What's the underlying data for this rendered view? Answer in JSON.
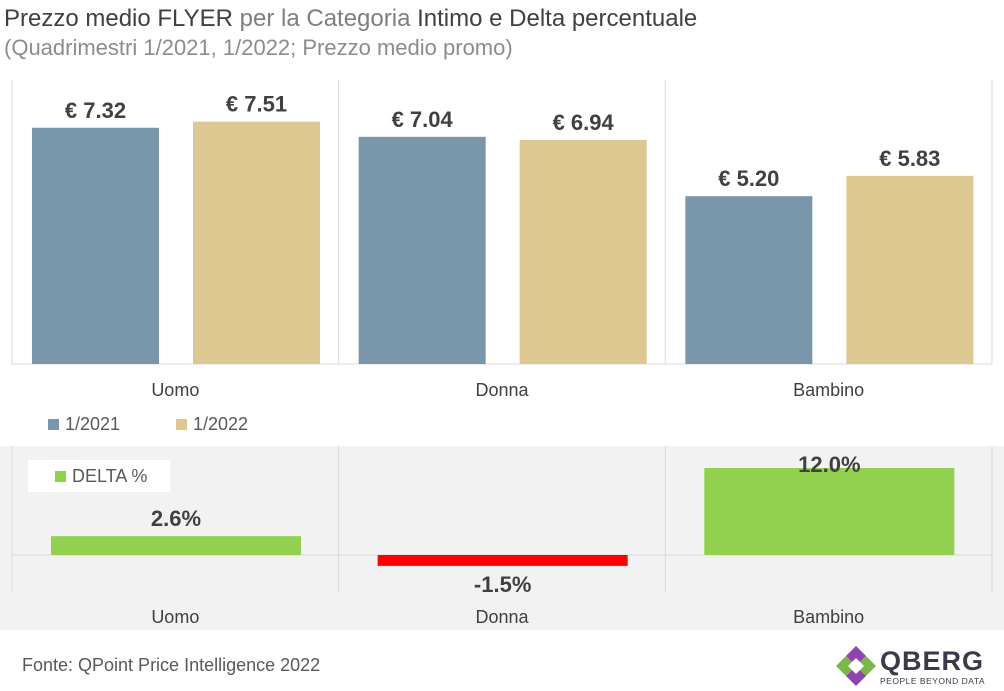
{
  "title": {
    "part1": "Prezzo medio FLYER",
    "part2": " per la Categoria ",
    "part3": "Intimo e Delta percentuale"
  },
  "subtitle": "(Quadrimestri 1/2021, 1/2022; Prezzo medio promo)",
  "source": "Fonte: QPoint Price Intelligence 2022",
  "logo": {
    "name": "QBERG",
    "tagline": "PEOPLE BEYOND DATA"
  },
  "colors": {
    "series_2021": "#7a96aa",
    "series_2022": "#dcc890",
    "delta_positive": "#92d050",
    "delta_negative": "#ff0000"
  },
  "chart_data": [
    {
      "type": "bar",
      "categories": [
        "Uomo",
        "Donna",
        "Bambino"
      ],
      "series": [
        {
          "name": "1/2021",
          "values": [
            7.32,
            7.04,
            5.2
          ],
          "labels": [
            "€ 7.32",
            "€ 7.04",
            "€ 5.20"
          ]
        },
        {
          "name": "1/2022",
          "values": [
            7.51,
            6.94,
            5.83
          ],
          "labels": [
            "€ 7.51",
            "€ 6.94",
            "€ 5.83"
          ]
        }
      ],
      "legend": "bottom-left",
      "grid": false
    },
    {
      "type": "bar",
      "categories": [
        "Uomo",
        "Donna",
        "Bambino"
      ],
      "series": [
        {
          "name": "DELTA %",
          "values": [
            2.6,
            -1.5,
            12.0
          ],
          "labels": [
            "2.6%",
            "-1.5%",
            "12.0%"
          ]
        }
      ],
      "legend": "top-left",
      "grid": false
    }
  ]
}
